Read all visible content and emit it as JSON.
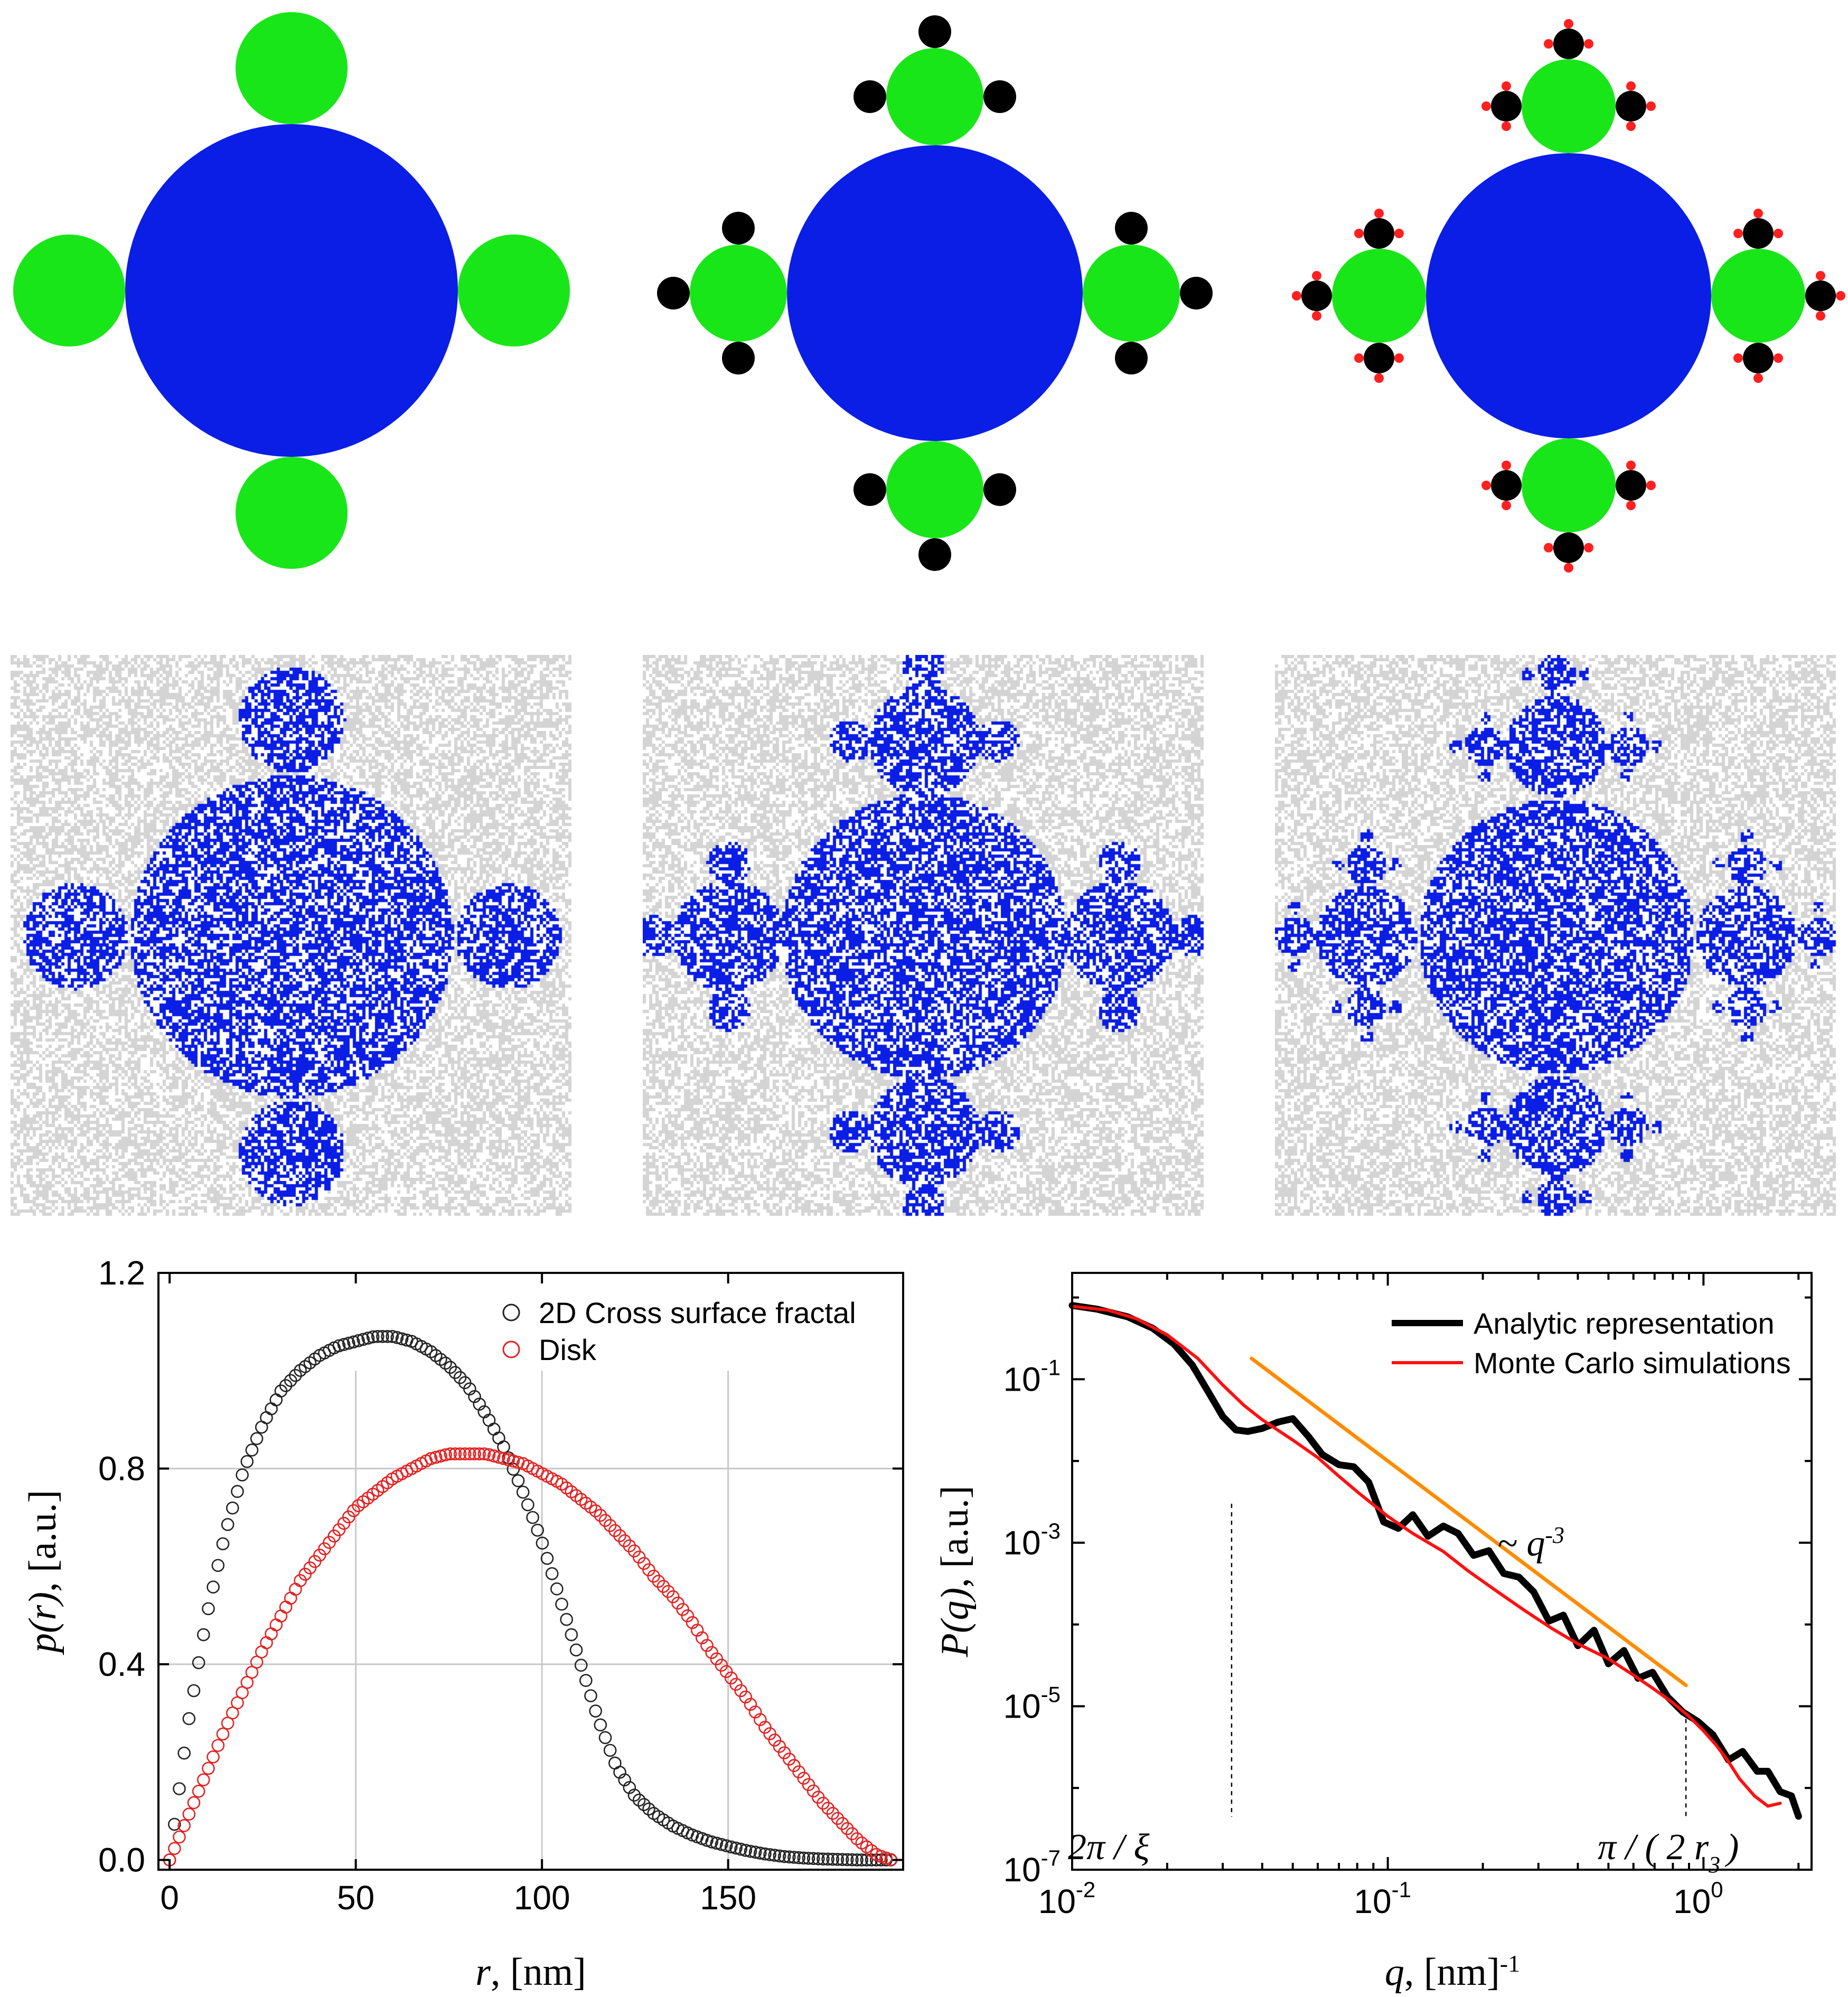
{
  "colors": {
    "core": "#0a1ee6",
    "level1": "#19e619",
    "level2": "#000000",
    "level3": "#ff2020",
    "noise": "#d4d4d4",
    "analytic": "#000000",
    "montecarlo": "#ff1010",
    "powerlaw": "#ff8c00",
    "disk": "#e62020",
    "cross": "#222222"
  },
  "diagram": {
    "panels": [
      {
        "name": "iteration-1",
        "levels": 1
      },
      {
        "name": "iteration-2",
        "levels": 2
      },
      {
        "name": "iteration-3",
        "levels": 3
      }
    ]
  },
  "chart_data": [
    {
      "type": "scatter",
      "title": "",
      "xlabel_var": "r",
      "xlabel_unit": ", [nm]",
      "ylabel_var": "p(r)",
      "ylabel_unit": ", [a.u.]",
      "xlim": [
        -3,
        197
      ],
      "ylim": [
        -0.02,
        1.2
      ],
      "xticks": [
        0,
        50,
        100,
        150
      ],
      "xtick_labels": [
        "0",
        "50",
        "100",
        "150"
      ],
      "yticks": [
        0.0,
        0.4,
        0.8,
        1.2
      ],
      "ytick_labels": [
        "0.0",
        "0.4",
        "0.8",
        "1.2"
      ],
      "grid": true,
      "legend_position": "top-right",
      "series": [
        {
          "name": "2D Cross surface fractal",
          "marker": "open-circle",
          "x": [
            0,
            5,
            10,
            15,
            20,
            25,
            30,
            35,
            40,
            45,
            50,
            55,
            60,
            65,
            70,
            75,
            80,
            85,
            90,
            95,
            100,
            105,
            110,
            115,
            120,
            125,
            130,
            135,
            140,
            145,
            150,
            155,
            160,
            165,
            170,
            175,
            180,
            185,
            190,
            194
          ],
          "y": [
            0.0,
            0.28,
            0.5,
            0.67,
            0.8,
            0.89,
            0.96,
            1.0,
            1.03,
            1.05,
            1.06,
            1.07,
            1.07,
            1.06,
            1.04,
            1.01,
            0.97,
            0.91,
            0.84,
            0.75,
            0.65,
            0.53,
            0.41,
            0.29,
            0.19,
            0.13,
            0.095,
            0.07,
            0.052,
            0.038,
            0.028,
            0.019,
            0.012,
            0.007,
            0.004,
            0.002,
            0.001,
            0.0,
            0.0,
            0.0
          ]
        },
        {
          "name": "Disk",
          "marker": "open-circle",
          "x": [
            0,
            5,
            10,
            15,
            20,
            25,
            30,
            35,
            40,
            45,
            50,
            55,
            60,
            65,
            70,
            75,
            80,
            85,
            90,
            95,
            100,
            105,
            110,
            115,
            120,
            125,
            130,
            135,
            140,
            145,
            150,
            155,
            160,
            165,
            170,
            175,
            180,
            185,
            190,
            194
          ],
          "y": [
            0.0,
            0.09,
            0.18,
            0.27,
            0.35,
            0.43,
            0.5,
            0.57,
            0.62,
            0.67,
            0.72,
            0.75,
            0.78,
            0.8,
            0.82,
            0.83,
            0.83,
            0.83,
            0.82,
            0.81,
            0.79,
            0.77,
            0.74,
            0.71,
            0.67,
            0.63,
            0.58,
            0.54,
            0.49,
            0.43,
            0.38,
            0.33,
            0.27,
            0.22,
            0.17,
            0.12,
            0.08,
            0.04,
            0.01,
            0.0
          ]
        }
      ]
    },
    {
      "type": "line",
      "title": "",
      "xscale": "log",
      "yscale": "log",
      "xlabel_var": "q",
      "xlabel_unit": ", [nm]",
      "xlabel_sup": "-1",
      "ylabel_var": "P(q)",
      "ylabel_unit": ", [a.u.]",
      "xlim": [
        0.01,
        2.2
      ],
      "ylim": [
        1e-07,
        2
      ],
      "xticks": [
        0.01,
        0.1,
        1
      ],
      "xtick_labels": [
        {
          "base": "10",
          "exp": "-2"
        },
        {
          "base": "10",
          "exp": "-1"
        },
        {
          "base": "10",
          "exp": "0"
        }
      ],
      "yticks": [
        1e-07,
        1e-05,
        0.001,
        0.1
      ],
      "ytick_labels": [
        {
          "base": "10",
          "exp": "-7"
        },
        {
          "base": "10",
          "exp": "-5"
        },
        {
          "base": "10",
          "exp": "-3"
        },
        {
          "base": "10",
          "exp": "-1"
        }
      ],
      "legend_position": "top-right",
      "series": [
        {
          "name": "Analytic representation",
          "x": [
            0.01,
            0.012,
            0.015,
            0.018,
            0.021,
            0.024,
            0.027,
            0.03,
            0.033,
            0.036,
            0.04,
            0.045,
            0.05,
            0.056,
            0.062,
            0.07,
            0.078,
            0.087,
            0.097,
            0.108,
            0.12,
            0.134,
            0.15,
            0.167,
            0.187,
            0.209,
            0.233,
            0.26,
            0.29,
            0.324,
            0.36,
            0.4,
            0.45,
            0.5,
            0.56,
            0.62,
            0.69,
            0.77,
            0.86,
            0.96,
            1.07,
            1.2,
            1.33,
            1.48,
            1.6,
            1.75,
            1.9,
            2.0
          ],
          "y": [
            0.8,
            0.72,
            0.58,
            0.42,
            0.27,
            0.15,
            0.07,
            0.035,
            0.024,
            0.023,
            0.025,
            0.03,
            0.033,
            0.02,
            0.012,
            0.009,
            0.0085,
            0.0055,
            0.0018,
            0.0015,
            0.0022,
            0.0012,
            0.0016,
            0.0013,
            0.0007,
            0.0008,
            0.00042,
            0.00038,
            0.00025,
            0.00011,
            0.00013,
            5.5e-05,
            8.5e-05,
            3.3e-05,
            4.8e-05,
            2.2e-05,
            2.6e-05,
            1.3e-05,
            8.5e-06,
            6.5e-06,
            4.5e-06,
            2.2e-06,
            2.8e-06,
            1.6e-06,
            1.6e-06,
            9e-07,
            8e-07,
            4.5e-07
          ]
        },
        {
          "name": "Monte Carlo simulations",
          "x": [
            0.01,
            0.013,
            0.016,
            0.02,
            0.025,
            0.03,
            0.035,
            0.04,
            0.05,
            0.06,
            0.07,
            0.08,
            0.1,
            0.12,
            0.15,
            0.18,
            0.22,
            0.27,
            0.33,
            0.4,
            0.5,
            0.6,
            0.7,
            0.8,
            0.9,
            1.0,
            1.1,
            1.2,
            1.3,
            1.45,
            1.6,
            1.75
          ],
          "y": [
            0.78,
            0.7,
            0.55,
            0.35,
            0.18,
            0.085,
            0.048,
            0.032,
            0.018,
            0.011,
            0.0065,
            0.0042,
            0.0021,
            0.0013,
            0.00078,
            0.00045,
            0.00026,
            0.00015,
            9e-05,
            5.8e-05,
            3.8e-05,
            2.4e-05,
            1.6e-05,
            1.1e-05,
            7.5e-06,
            5e-06,
            3.3e-06,
            2.1e-06,
            1.3e-06,
            8e-07,
            6e-07,
            6.5e-07
          ]
        },
        {
          "name": "power-law guide",
          "x": [
            0.037,
            0.88
          ],
          "y": [
            0.18,
            1.8e-05
          ]
        }
      ],
      "annotations": [
        {
          "id": "slope",
          "prefix": "~ ",
          "var": "q",
          "exp": "-3"
        },
        {
          "id": "xi",
          "text": "2π / ξ",
          "x": 0.032
        },
        {
          "id": "r3",
          "text_main": "π / ( 2 r",
          "text_sub": "3",
          "text_end": ")",
          "x": 0.88
        }
      ]
    }
  ]
}
